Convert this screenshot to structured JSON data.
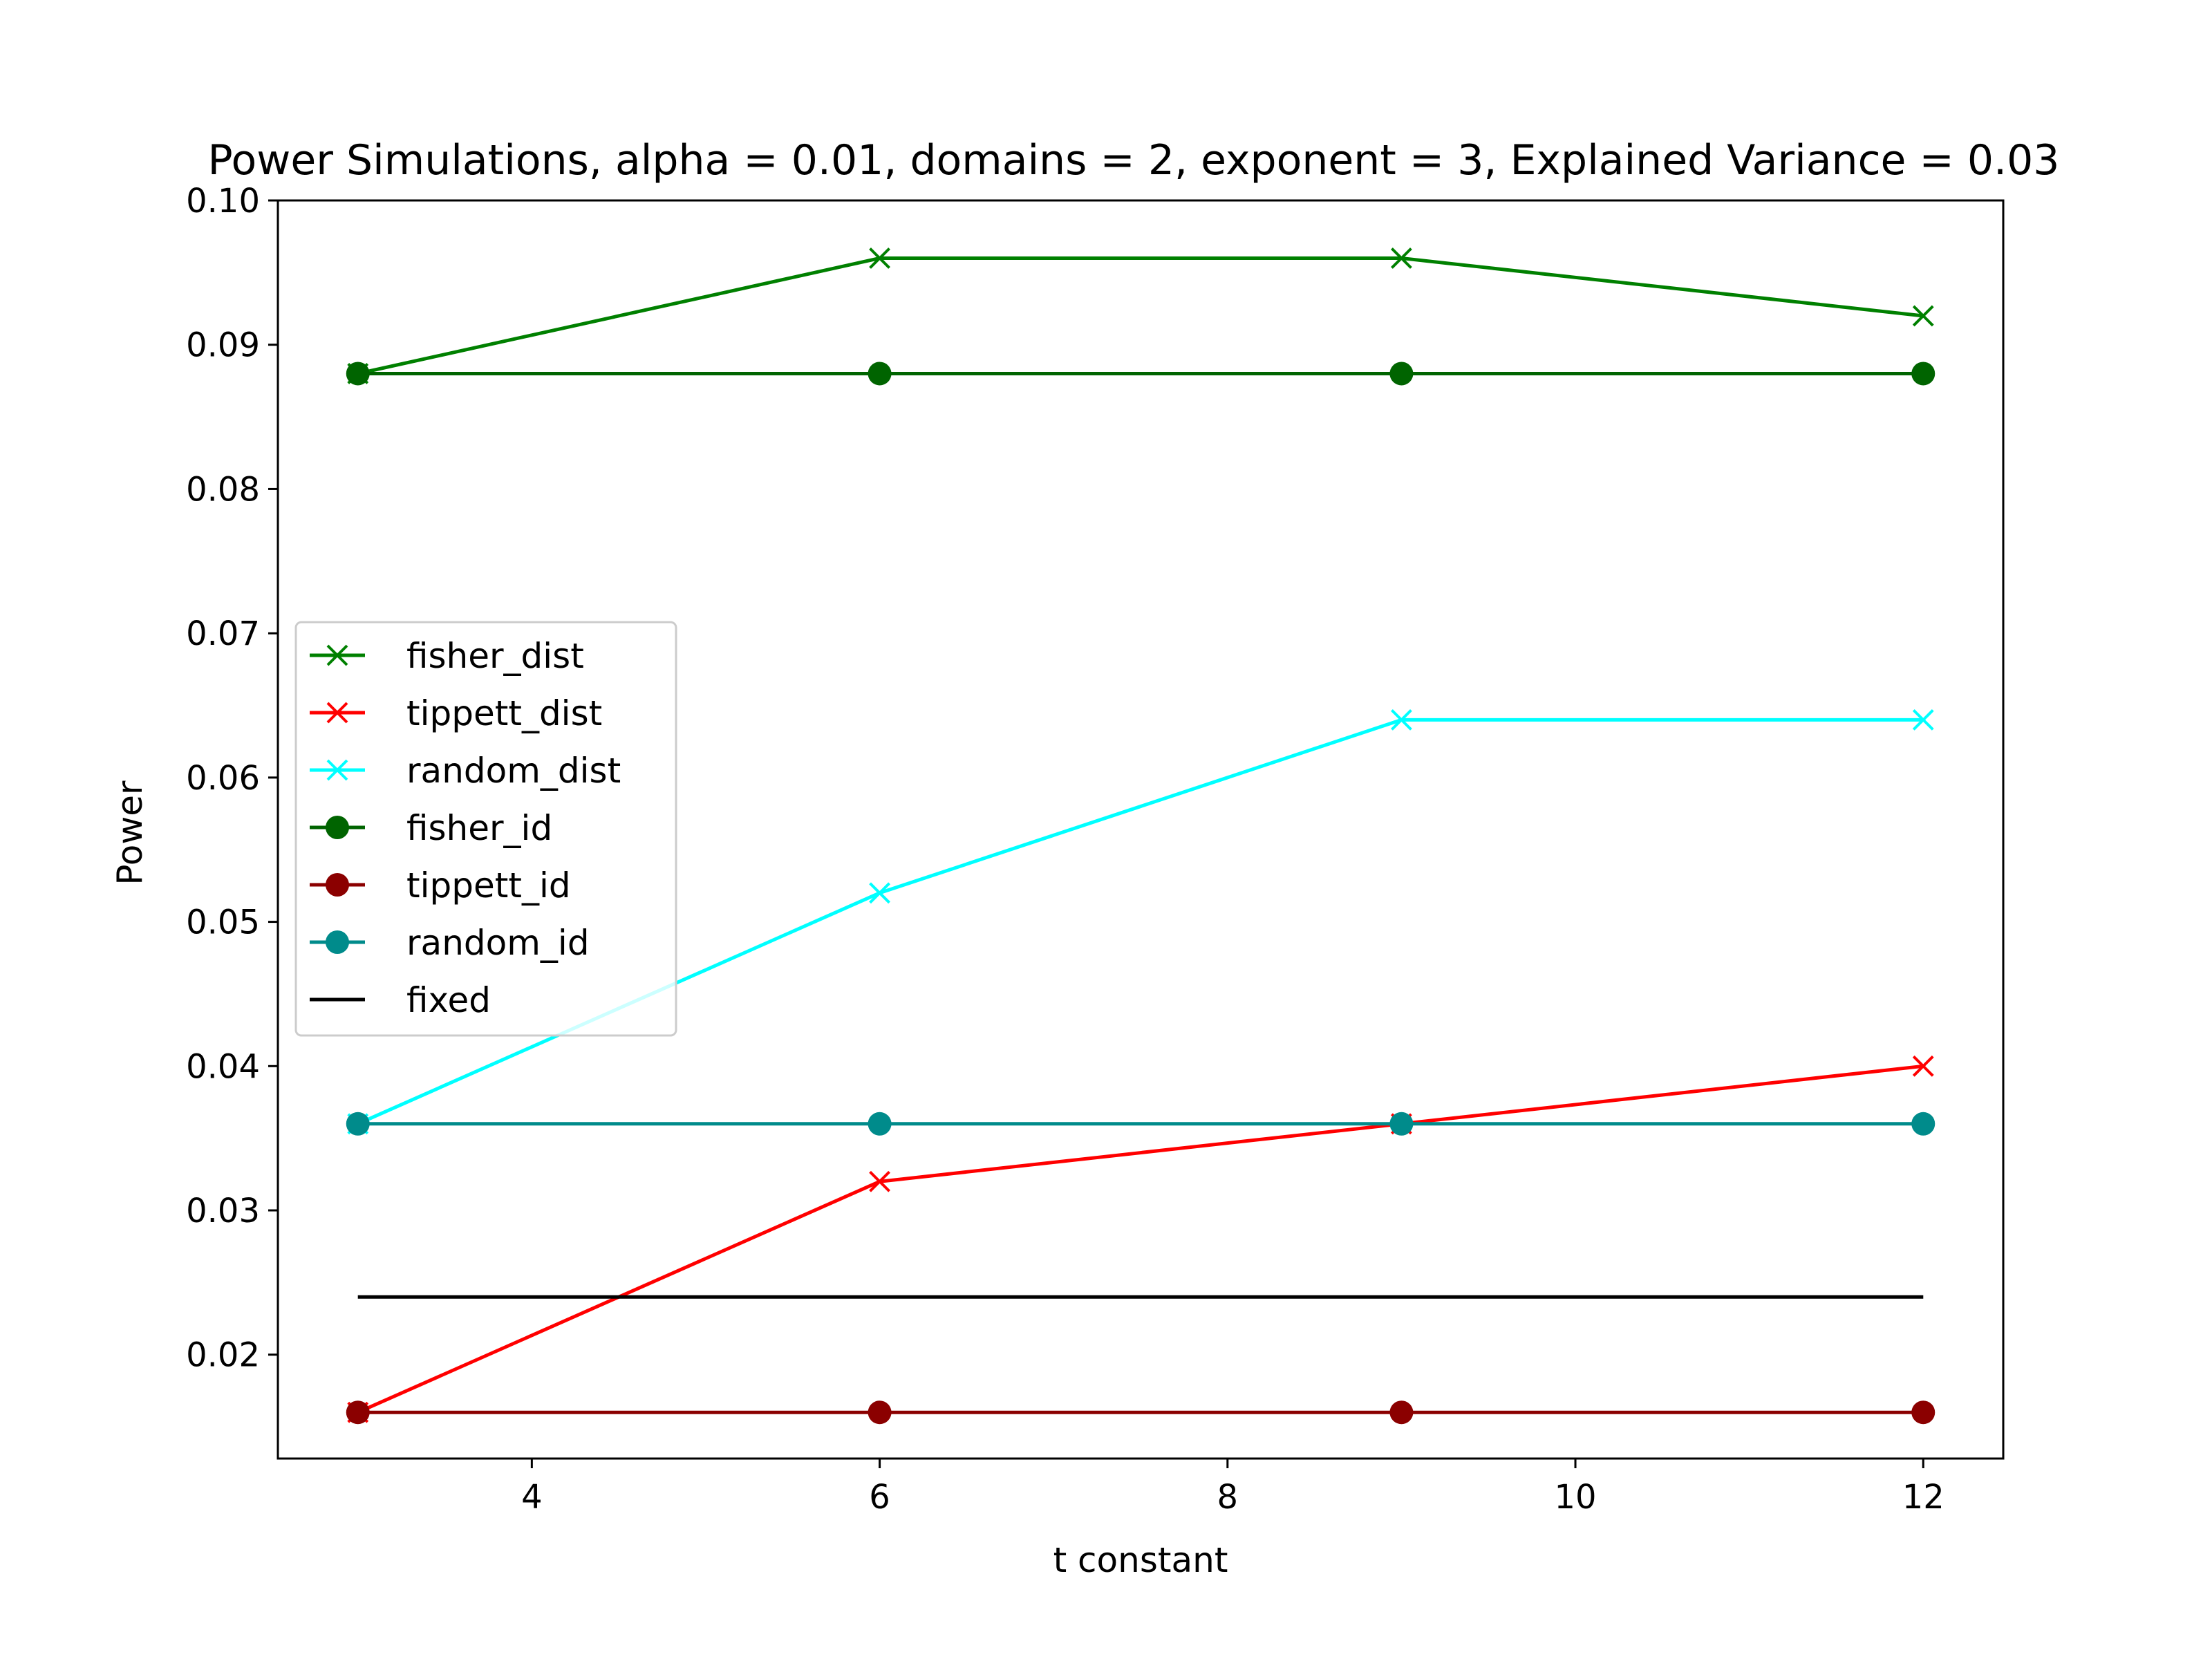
{
  "chart_data": {
    "type": "line",
    "title": "Power Simulations, alpha = 0.01, domains = 2, exponent = 3, Explained Variance = 0.03",
    "xlabel": "t constant",
    "ylabel": "Power",
    "xlim": [
      2.54,
      12.46
    ],
    "ylim": [
      0.0128,
      0.1
    ],
    "xticks": [
      4,
      6,
      8,
      10,
      12
    ],
    "xtick_labels": [
      "4",
      "6",
      "8",
      "10",
      "12"
    ],
    "yticks": [
      0.02,
      0.03,
      0.04,
      0.05,
      0.06,
      0.07,
      0.08,
      0.09,
      0.1
    ],
    "ytick_labels": [
      "0.02",
      "0.03",
      "0.04",
      "0.05",
      "0.06",
      "0.07",
      "0.08",
      "0.09",
      "0.10"
    ],
    "grid": false,
    "legend_position": "center-left",
    "x": [
      3,
      6,
      9,
      12
    ],
    "series": [
      {
        "name": "fisher_dist",
        "values": [
          0.088,
          0.096,
          0.096,
          0.092
        ],
        "color": "#008000",
        "marker": "x"
      },
      {
        "name": "tippett_dist",
        "values": [
          0.016,
          0.032,
          0.036,
          0.04
        ],
        "color": "#ff0000",
        "marker": "x"
      },
      {
        "name": "random_dist",
        "values": [
          0.036,
          0.052,
          0.064,
          0.064
        ],
        "color": "#00ffff",
        "marker": "x"
      },
      {
        "name": "fisher_id",
        "values": [
          0.088,
          0.088,
          0.088,
          0.088
        ],
        "color": "#006400",
        "marker": "circle"
      },
      {
        "name": "tippett_id",
        "values": [
          0.016,
          0.016,
          0.016,
          0.016
        ],
        "color": "#8b0000",
        "marker": "circle"
      },
      {
        "name": "random_id",
        "values": [
          0.036,
          0.036,
          0.036,
          0.036
        ],
        "color": "#008b8b",
        "marker": "circle"
      },
      {
        "name": "fixed",
        "values": [
          0.024,
          0.024,
          0.024,
          0.024
        ],
        "color": "#000000",
        "marker": "none"
      }
    ]
  }
}
